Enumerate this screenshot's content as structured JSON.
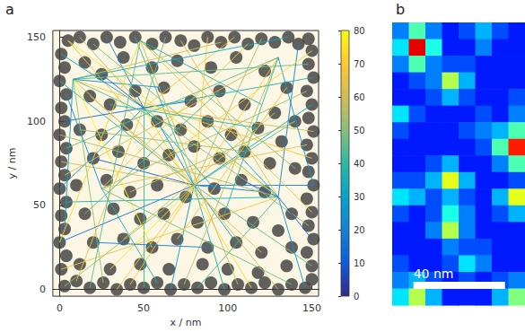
{
  "chart_data": [
    {
      "panel": "a",
      "type": "scatter",
      "xlabel": "x / nm",
      "ylabel": "y / nm",
      "xlim": [
        -4,
        154
      ],
      "ylim": [
        -4,
        154
      ],
      "xticks": [
        0,
        50,
        100,
        150
      ],
      "yticks": [
        0,
        50,
        100,
        150
      ],
      "marker": "circle",
      "color": "#3a3a3a",
      "points": [
        [
          5,
          148
        ],
        [
          12,
          150
        ],
        [
          20,
          146
        ],
        [
          28,
          150
        ],
        [
          36,
          147
        ],
        [
          45,
          150
        ],
        [
          55,
          146
        ],
        [
          63,
          150
        ],
        [
          72,
          148
        ],
        [
          80,
          145
        ],
        [
          88,
          150
        ],
        [
          96,
          147
        ],
        [
          104,
          150
        ],
        [
          112,
          146
        ],
        [
          120,
          149
        ],
        [
          128,
          147
        ],
        [
          136,
          150
        ],
        [
          142,
          146
        ],
        [
          148,
          149
        ],
        [
          3,
          2
        ],
        [
          10,
          5
        ],
        [
          18,
          1
        ],
        [
          26,
          4
        ],
        [
          34,
          0
        ],
        [
          42,
          3
        ],
        [
          50,
          1
        ],
        [
          58,
          4
        ],
        [
          66,
          0
        ],
        [
          74,
          3
        ],
        [
          82,
          1
        ],
        [
          90,
          4
        ],
        [
          98,
          0
        ],
        [
          106,
          3
        ],
        [
          114,
          1
        ],
        [
          122,
          4
        ],
        [
          130,
          0
        ],
        [
          138,
          3
        ],
        [
          146,
          1
        ],
        [
          150,
          6
        ],
        [
          1,
          12
        ],
        [
          4,
          20
        ],
        [
          0,
          28
        ],
        [
          3,
          36
        ],
        [
          1,
          44
        ],
        [
          4,
          52
        ],
        [
          0,
          60
        ],
        [
          3,
          68
        ],
        [
          1,
          76
        ],
        [
          4,
          84
        ],
        [
          0,
          92
        ],
        [
          3,
          100
        ],
        [
          1,
          108
        ],
        [
          4,
          116
        ],
        [
          0,
          124
        ],
        [
          3,
          132
        ],
        [
          1,
          140
        ],
        [
          150,
          14
        ],
        [
          147,
          22
        ],
        [
          151,
          30
        ],
        [
          148,
          38
        ],
        [
          150,
          46
        ],
        [
          147,
          54
        ],
        [
          151,
          62
        ],
        [
          148,
          70
        ],
        [
          150,
          78
        ],
        [
          147,
          86
        ],
        [
          151,
          94
        ],
        [
          148,
          102
        ],
        [
          150,
          110
        ],
        [
          147,
          118
        ],
        [
          151,
          126
        ],
        [
          148,
          134
        ],
        [
          150,
          142
        ],
        [
          15,
          135
        ],
        [
          25,
          128
        ],
        [
          38,
          138
        ],
        [
          55,
          132
        ],
        [
          70,
          136
        ],
        [
          90,
          132
        ],
        [
          105,
          138
        ],
        [
          122,
          130
        ],
        [
          135,
          120
        ],
        [
          18,
          115
        ],
        [
          30,
          110
        ],
        [
          45,
          118
        ],
        [
          62,
          120
        ],
        [
          78,
          112
        ],
        [
          95,
          118
        ],
        [
          110,
          110
        ],
        [
          128,
          105
        ],
        [
          140,
          100
        ],
        [
          12,
          95
        ],
        [
          25,
          92
        ],
        [
          40,
          98
        ],
        [
          58,
          100
        ],
        [
          72,
          95
        ],
        [
          88,
          100
        ],
        [
          102,
          92
        ],
        [
          118,
          96
        ],
        [
          132,
          88
        ],
        [
          20,
          78
        ],
        [
          35,
          82
        ],
        [
          50,
          75
        ],
        [
          65,
          80
        ],
        [
          80,
          85
        ],
        [
          95,
          78
        ],
        [
          110,
          82
        ],
        [
          125,
          75
        ],
        [
          140,
          72
        ],
        [
          10,
          62
        ],
        [
          28,
          65
        ],
        [
          42,
          58
        ],
        [
          58,
          62
        ],
        [
          75,
          55
        ],
        [
          92,
          60
        ],
        [
          108,
          65
        ],
        [
          122,
          58
        ],
        [
          138,
          45
        ],
        [
          15,
          45
        ],
        [
          32,
          48
        ],
        [
          48,
          42
        ],
        [
          62,
          45
        ],
        [
          82,
          40
        ],
        [
          98,
          45
        ],
        [
          115,
          40
        ],
        [
          130,
          35
        ],
        [
          20,
          28
        ],
        [
          38,
          30
        ],
        [
          55,
          25
        ],
        [
          70,
          30
        ],
        [
          88,
          25
        ],
        [
          105,
          28
        ],
        [
          120,
          22
        ],
        [
          138,
          25
        ],
        [
          12,
          15
        ],
        [
          30,
          12
        ],
        [
          48,
          15
        ],
        [
          65,
          12
        ],
        [
          85,
          15
        ],
        [
          100,
          12
        ],
        [
          118,
          10
        ],
        [
          135,
          14
        ]
      ],
      "links": [
        [
          80,
          62,
          5,
          148,
          65
        ],
        [
          80,
          62,
          45,
          150,
          40
        ],
        [
          80,
          62,
          88,
          150,
          72
        ],
        [
          80,
          62,
          120,
          149,
          55
        ],
        [
          80,
          62,
          150,
          110,
          30
        ],
        [
          80,
          62,
          151,
          62,
          20
        ],
        [
          80,
          62,
          150,
          14,
          45
        ],
        [
          80,
          62,
          130,
          0,
          60
        ],
        [
          80,
          62,
          98,
          0,
          35
        ],
        [
          80,
          62,
          66,
          0,
          25
        ],
        [
          80,
          62,
          34,
          0,
          70
        ],
        [
          80,
          62,
          3,
          2,
          50
        ],
        [
          80,
          62,
          0,
          28,
          15
        ],
        [
          80,
          62,
          1,
          76,
          60
        ],
        [
          80,
          62,
          0,
          124,
          38
        ],
        [
          80,
          62,
          20,
          78,
          10
        ],
        [
          80,
          62,
          58,
          100,
          22
        ],
        [
          80,
          62,
          122,
          58,
          18
        ],
        [
          80,
          62,
          105,
          28,
          28
        ],
        [
          80,
          62,
          30,
          12,
          75
        ],
        [
          80,
          62,
          140,
          100,
          42
        ],
        [
          80,
          62,
          18,
          115,
          58
        ],
        [
          50,
          108,
          1,
          140,
          30
        ],
        [
          50,
          108,
          12,
          150,
          55
        ],
        [
          50,
          108,
          28,
          150,
          20
        ],
        [
          50,
          108,
          63,
          150,
          48
        ],
        [
          50,
          108,
          104,
          150,
          68
        ],
        [
          50,
          108,
          150,
          126,
          35
        ],
        [
          50,
          108,
          151,
          94,
          62
        ],
        [
          50,
          108,
          148,
          38,
          52
        ],
        [
          50,
          108,
          114,
          1,
          74
        ],
        [
          50,
          108,
          50,
          1,
          40
        ],
        [
          50,
          108,
          10,
          5,
          66
        ],
        [
          50,
          108,
          0,
          60,
          25
        ],
        [
          50,
          108,
          3,
          100,
          12
        ],
        [
          50,
          108,
          92,
          60,
          33
        ],
        [
          50,
          108,
          25,
          128,
          8
        ],
        [
          50,
          108,
          78,
          112,
          16
        ],
        [
          8,
          125,
          96,
          147,
          60
        ],
        [
          8,
          125,
          148,
          134,
          45
        ],
        [
          8,
          125,
          150,
          78,
          70
        ],
        [
          8,
          125,
          136,
          150,
          32
        ],
        [
          8,
          125,
          62,
          120,
          22
        ],
        [
          8,
          125,
          55,
          25,
          78
        ],
        [
          8,
          125,
          26,
          4,
          52
        ],
        [
          8,
          125,
          120,
          22,
          64
        ],
        [
          8,
          125,
          72,
          95,
          44
        ],
        [
          8,
          125,
          3,
          36,
          28
        ],
        [
          130,
          55,
          5,
          148,
          75
        ],
        [
          130,
          55,
          20,
          146,
          48
        ],
        [
          130,
          55,
          72,
          148,
          62
        ],
        [
          130,
          55,
          142,
          146,
          20
        ],
        [
          130,
          55,
          0,
          92,
          55
        ],
        [
          130,
          55,
          4,
          52,
          35
        ],
        [
          130,
          55,
          1,
          12,
          68
        ],
        [
          130,
          55,
          82,
          1,
          42
        ],
        [
          130,
          55,
          146,
          1,
          25
        ],
        [
          130,
          55,
          150,
          30,
          10
        ],
        [
          130,
          55,
          108,
          65,
          12
        ],
        [
          130,
          55,
          88,
          100,
          30
        ],
        [
          48,
          148,
          150,
          46,
          66
        ],
        [
          48,
          148,
          106,
          3,
          58
        ],
        [
          48,
          148,
          18,
          1,
          44
        ],
        [
          48,
          148,
          0,
          28,
          72
        ],
        [
          48,
          148,
          120,
          110,
          36
        ],
        [
          48,
          148,
          140,
          72,
          50
        ],
        [
          130,
          138,
          3,
          68,
          62
        ],
        [
          130,
          138,
          42,
          3,
          70
        ],
        [
          130,
          138,
          74,
          3,
          56
        ],
        [
          130,
          138,
          4,
          84,
          46
        ],
        [
          130,
          138,
          98,
          45,
          40
        ],
        [
          130,
          138,
          151,
          62,
          26
        ],
        [
          25,
          60,
          147,
          86,
          64
        ],
        [
          25,
          60,
          147,
          118,
          54
        ],
        [
          25,
          60,
          138,
          3,
          48
        ],
        [
          25,
          60,
          112,
          146,
          70
        ],
        [
          25,
          60,
          58,
          4,
          36
        ],
        [
          25,
          60,
          4,
          116,
          22
        ],
        [
          12,
          95,
          110,
          82,
          52
        ],
        [
          38,
          30,
          128,
          105,
          60
        ],
        [
          15,
          45,
          95,
          118,
          44
        ],
        [
          70,
          30,
          135,
          120,
          66
        ],
        [
          30,
          110,
          118,
          96,
          38
        ],
        [
          65,
          80,
          150,
          142,
          72
        ],
        [
          20,
          28,
          88,
          25,
          18
        ],
        [
          42,
          58,
          140,
          100,
          56
        ]
      ],
      "colorbar": {
        "range": [
          0,
          80
        ],
        "ticks": [
          0,
          10,
          20,
          30,
          40,
          50,
          60,
          70,
          80
        ]
      }
    },
    {
      "panel": "b",
      "type": "heatmap",
      "xlim": [
        0,
        58
      ],
      "ylim": [
        0,
        124
      ],
      "xticks": [
        10,
        20,
        30,
        40,
        50
      ],
      "yticks": [
        10,
        20,
        30,
        40,
        50,
        60,
        70,
        80,
        90,
        100,
        110,
        120
      ],
      "tick_labels": false,
      "zlim": [
        0,
        1
      ],
      "cells": [
        [
          0.25,
          0.45,
          0.25,
          0.15,
          0.2,
          0.3,
          0.2,
          0.15
        ],
        [
          0.35,
          0.9,
          0.4,
          0.15,
          0.15,
          0.25,
          0.15,
          0.15
        ],
        [
          0.25,
          0.45,
          0.25,
          0.2,
          0.2,
          0.15,
          0.15,
          0.15
        ],
        [
          0.15,
          0.2,
          0.25,
          0.55,
          0.3,
          0.15,
          0.15,
          0.15
        ],
        [
          0.15,
          0.15,
          0.2,
          0.3,
          0.2,
          0.15,
          0.15,
          0.2
        ],
        [
          0.35,
          0.2,
          0.15,
          0.15,
          0.15,
          0.2,
          0.15,
          0.25
        ],
        [
          0.2,
          0.15,
          0.15,
          0.15,
          0.2,
          0.25,
          0.3,
          0.45
        ],
        [
          0.15,
          0.15,
          0.15,
          0.15,
          0.15,
          0.2,
          0.45,
          0.85
        ],
        [
          0.15,
          0.15,
          0.2,
          0.3,
          0.15,
          0.15,
          0.25,
          0.45
        ],
        [
          0.2,
          0.2,
          0.3,
          0.6,
          0.3,
          0.15,
          0.15,
          0.2
        ],
        [
          0.35,
          0.3,
          0.2,
          0.3,
          0.2,
          0.15,
          0.3,
          0.6
        ],
        [
          0.2,
          0.15,
          0.2,
          0.4,
          0.25,
          0.15,
          0.2,
          0.3
        ],
        [
          0.15,
          0.15,
          0.25,
          0.55,
          0.25,
          0.15,
          0.15,
          0.15
        ],
        [
          0.15,
          0.15,
          0.15,
          0.25,
          0.2,
          0.2,
          0.15,
          0.15
        ],
        [
          0.2,
          0.15,
          0.15,
          0.2,
          0.35,
          0.25,
          0.15,
          0.15
        ],
        [
          0.25,
          0.3,
          0.2,
          0.15,
          0.2,
          0.15,
          0.2,
          0.25
        ],
        [
          0.35,
          0.55,
          0.3,
          0.15,
          0.15,
          0.15,
          0.3,
          0.5
        ]
      ],
      "scale_bar": {
        "length": 40,
        "label": "40 nm"
      }
    }
  ]
}
